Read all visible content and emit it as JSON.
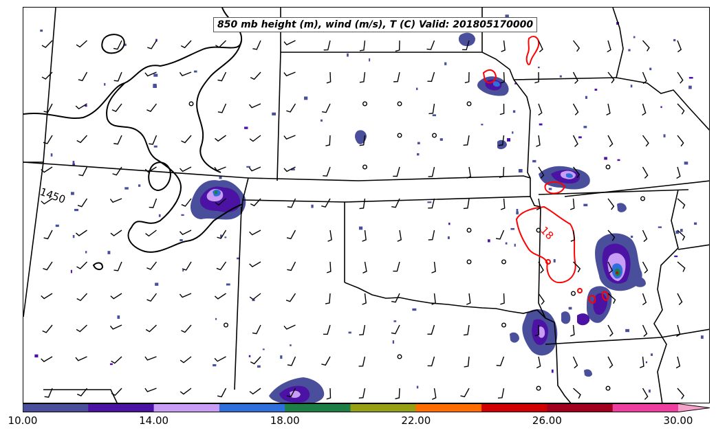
{
  "title": "850 mb height (m), wind (m/s), T (C) Valid: 201805170000",
  "contour_labels": {
    "height": "1450",
    "temperature": "18"
  },
  "colorbar": {
    "ticks": [
      "10.00",
      "14.00",
      "18.00",
      "22.00",
      "26.00",
      "30.00"
    ],
    "range": [
      10,
      31
    ],
    "colors": [
      "#4a4f9b",
      "#4b12a3",
      "#c99cf5",
      "#2f6fdc",
      "#1d7f45",
      "#96a012",
      "#ff6d00",
      "#d10000",
      "#a0001e",
      "#ee3ea0",
      "#f7a0cc"
    ],
    "extend": "max"
  },
  "colors": {
    "height_contour": "#000000",
    "temperature_contour": "#ff0000",
    "boundaries": "#000000"
  },
  "icons": {
    "wind": "wind-barb-icon",
    "calm": "calm-circle-icon"
  }
}
